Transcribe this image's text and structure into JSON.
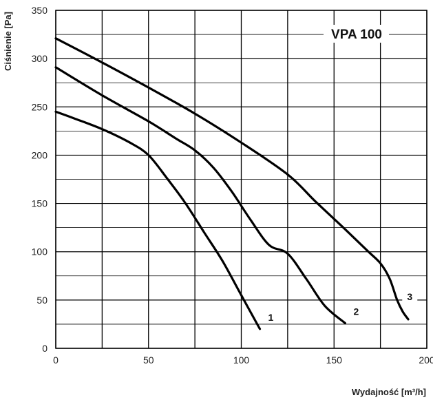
{
  "chart_data": {
    "type": "line",
    "title": "VPA 100",
    "xlabel": "Wydajność [m³/h]",
    "ylabel": "Ciśnienie [Pa]",
    "xlim": [
      0,
      200
    ],
    "ylim": [
      0,
      350
    ],
    "x_ticks": [
      0,
      50,
      100,
      150,
      200
    ],
    "y_ticks": [
      0,
      50,
      100,
      150,
      200,
      250,
      300,
      350
    ],
    "grid": true,
    "series": [
      {
        "name": "1",
        "points": [
          [
            0,
            245
          ],
          [
            10,
            238
          ],
          [
            25,
            227
          ],
          [
            40,
            213
          ],
          [
            50,
            200
          ],
          [
            60,
            176
          ],
          [
            70,
            150
          ],
          [
            80,
            120
          ],
          [
            90,
            90
          ],
          [
            100,
            55
          ],
          [
            110,
            20
          ]
        ]
      },
      {
        "name": "2",
        "points": [
          [
            0,
            291
          ],
          [
            25,
            262
          ],
          [
            50,
            235
          ],
          [
            65,
            217
          ],
          [
            75,
            205
          ],
          [
            85,
            187
          ],
          [
            95,
            162
          ],
          [
            105,
            133
          ],
          [
            115,
            107
          ],
          [
            125,
            98
          ],
          [
            135,
            72
          ],
          [
            145,
            44
          ],
          [
            156,
            26
          ]
        ]
      },
      {
        "name": "3",
        "points": [
          [
            0,
            321
          ],
          [
            25,
            296
          ],
          [
            50,
            270
          ],
          [
            75,
            243
          ],
          [
            100,
            213
          ],
          [
            125,
            180
          ],
          [
            140,
            152
          ],
          [
            155,
            125
          ],
          [
            168,
            101
          ],
          [
            175,
            88
          ],
          [
            180,
            72
          ],
          [
            184,
            50
          ],
          [
            187,
            38
          ],
          [
            190,
            30
          ]
        ]
      }
    ]
  }
}
